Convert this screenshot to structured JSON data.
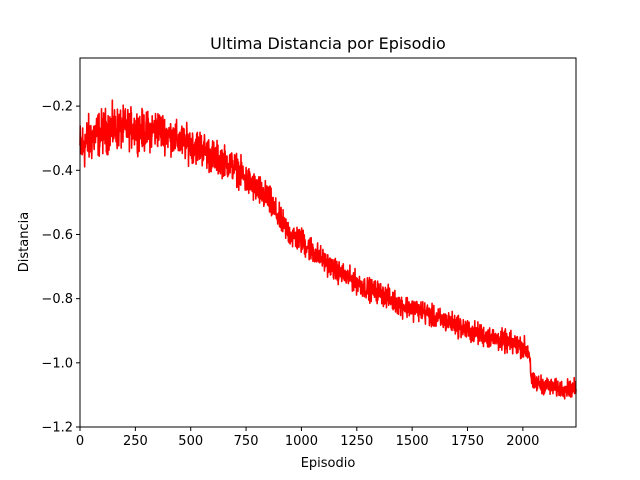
{
  "chart_data": {
    "type": "line",
    "title": "Ultima Distancia por Episodio",
    "xlabel": "Episodio",
    "ylabel": "Distancia",
    "xlim": [
      0,
      2240
    ],
    "ylim": [
      -1.2,
      -0.05
    ],
    "xticks": [
      0,
      250,
      500,
      750,
      1000,
      1250,
      1500,
      1750,
      2000
    ],
    "yticks": [
      -1.2,
      -1.0,
      -0.8,
      -0.6,
      -0.4,
      -0.2
    ],
    "xtick_labels": [
      "0",
      "250",
      "500",
      "750",
      "1000",
      "1250",
      "1500",
      "1750",
      "2000"
    ],
    "ytick_labels": [
      "−1.2",
      "−1.0",
      "−0.8",
      "−0.6",
      "−0.4",
      "−0.2"
    ],
    "grid": false,
    "series": [
      {
        "color": "#ff0000",
        "x": [
          0,
          50,
          100,
          150,
          200,
          250,
          300,
          350,
          400,
          450,
          500,
          550,
          600,
          650,
          700,
          750,
          800,
          850,
          900,
          950,
          1000,
          1050,
          1100,
          1150,
          1200,
          1250,
          1300,
          1350,
          1400,
          1450,
          1500,
          1550,
          1600,
          1650,
          1700,
          1750,
          1800,
          1850,
          1900,
          1950,
          2000,
          2030,
          2040,
          2100,
          2150,
          2200,
          2240
        ],
        "y": [
          -0.33,
          -0.3,
          -0.28,
          -0.27,
          -0.27,
          -0.27,
          -0.28,
          -0.27,
          -0.29,
          -0.31,
          -0.32,
          -0.33,
          -0.36,
          -0.37,
          -0.39,
          -0.43,
          -0.46,
          -0.49,
          -0.55,
          -0.6,
          -0.62,
          -0.65,
          -0.68,
          -0.71,
          -0.73,
          -0.75,
          -0.77,
          -0.78,
          -0.8,
          -0.82,
          -0.83,
          -0.84,
          -0.86,
          -0.87,
          -0.88,
          -0.9,
          -0.91,
          -0.92,
          -0.93,
          -0.94,
          -0.95,
          -0.97,
          -1.06,
          -1.07,
          -1.08,
          -1.08,
          -1.08
        ],
        "noise_amplitude": [
          0.12,
          0.11,
          0.1,
          0.1,
          0.09,
          0.09,
          0.09,
          0.09,
          0.08,
          0.08,
          0.08,
          0.08,
          0.08,
          0.07,
          0.07,
          0.07,
          0.07,
          0.07,
          0.06,
          0.06,
          0.06,
          0.06,
          0.05,
          0.05,
          0.05,
          0.05,
          0.05,
          0.05,
          0.05,
          0.05,
          0.05,
          0.05,
          0.05,
          0.05,
          0.05,
          0.05,
          0.05,
          0.05,
          0.05,
          0.05,
          0.05,
          0.05,
          0.04,
          0.04,
          0.04,
          0.04,
          0.04
        ]
      }
    ]
  }
}
